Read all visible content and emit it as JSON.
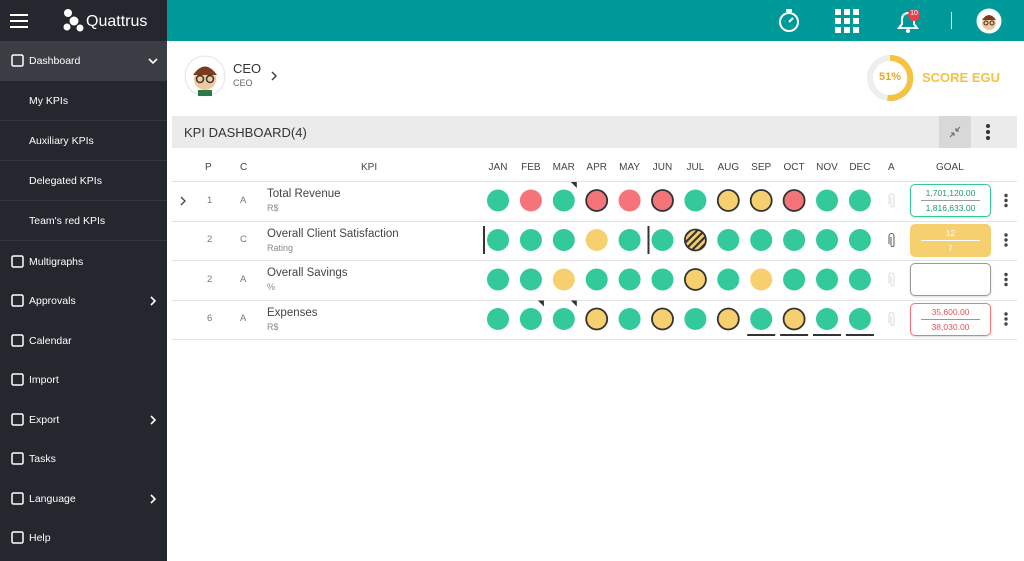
{
  "sidebar": {
    "brand": "Quattrus",
    "items": [
      {
        "label": "Dashboard",
        "expanded": true
      },
      {
        "label": "My KPIs"
      },
      {
        "label": "Auxiliary KPIs"
      },
      {
        "label": "Delegated KPIs"
      },
      {
        "label": "Team's red KPIs"
      },
      {
        "label": "Multigraphs"
      },
      {
        "label": "Approvals"
      },
      {
        "label": "Calendar"
      },
      {
        "label": "Import"
      },
      {
        "label": "Export"
      },
      {
        "label": "Tasks"
      },
      {
        "label": "Language"
      },
      {
        "label": "Help"
      }
    ]
  },
  "topbar": {
    "notifications": "10"
  },
  "profile": {
    "name": "CEO",
    "role": "CEO"
  },
  "score": {
    "value": "51%",
    "label": "SCORE EGU"
  },
  "dashboard": {
    "title": "KPI DASHBOARD(4)",
    "columns": {
      "p": "P",
      "c": "C",
      "kpi": "KPI",
      "months": [
        "JAN",
        "FEB",
        "MAR",
        "APR",
        "MAY",
        "JUN",
        "JUL",
        "AUG",
        "SEP",
        "OCT",
        "NOV",
        "DEC"
      ],
      "a": "A",
      "goal": "GOAL"
    },
    "rows": [
      {
        "p": "1",
        "c": "A",
        "name": "Total Revenue",
        "unit": "R$",
        "goal": [
          "1,701,120.00",
          "1,816,633.00"
        ],
        "goal_color": "#34c99a",
        "attach": false,
        "cells": [
          {
            "color": "#34c99a"
          },
          {
            "color": "#f47479"
          },
          {
            "color": "#34c99a",
            "corner": true
          },
          {
            "color": "#f47479",
            "outline": true
          },
          {
            "color": "#f47479"
          },
          {
            "color": "#f47479",
            "outline": true
          },
          {
            "color": "#34c99a"
          },
          {
            "color": "#f6d06f",
            "outline": true
          },
          {
            "color": "#f6d06f",
            "outline": true
          },
          {
            "color": "#f47479",
            "outline": true
          },
          {
            "color": "#34c99a"
          },
          {
            "color": "#34c99a"
          }
        ]
      },
      {
        "p": "2",
        "c": "C",
        "name": "Overall Client Satisfaction",
        "unit": "Rating",
        "goal": [
          "12",
          "7"
        ],
        "goal_color": "#f6d06f",
        "goal_filled": true,
        "attach": true,
        "cells": [
          {
            "color": "#34c99a",
            "bar": true
          },
          {
            "color": "#34c99a"
          },
          {
            "color": "#34c99a"
          },
          {
            "color": "#f6d06f"
          },
          {
            "color": "#34c99a"
          },
          {
            "color": "#34c99a",
            "bar": true
          },
          {
            "color": "#e0b93a",
            "outline": true,
            "striped": true
          },
          {
            "color": "#34c99a"
          },
          {
            "color": "#34c99a"
          },
          {
            "color": "#34c99a"
          },
          {
            "color": "#34c99a"
          },
          {
            "color": "#34c99a"
          }
        ]
      },
      {
        "p": "2",
        "c": "A",
        "name": "Overall Savings",
        "unit": "%",
        "goal": [],
        "goal_color": "#999999",
        "attach": false,
        "cells": [
          {
            "color": "#34c99a"
          },
          {
            "color": "#34c99a"
          },
          {
            "color": "#f6d06f"
          },
          {
            "color": "#34c99a"
          },
          {
            "color": "#34c99a"
          },
          {
            "color": "#34c99a"
          },
          {
            "color": "#f6d06f",
            "outline": true
          },
          {
            "color": "#34c99a"
          },
          {
            "color": "#f6d06f"
          },
          {
            "color": "#34c99a"
          },
          {
            "color": "#34c99a"
          },
          {
            "color": "#34c99a"
          }
        ]
      },
      {
        "p": "6",
        "c": "A",
        "name": "Expenses",
        "unit": "R$",
        "goal": [
          "35,600.00",
          "38,030.00"
        ],
        "goal_color": "#f47479",
        "attach": false,
        "cells": [
          {
            "color": "#34c99a"
          },
          {
            "color": "#34c99a",
            "corner": true
          },
          {
            "color": "#34c99a",
            "corner": true
          },
          {
            "color": "#f6d06f",
            "outline": true
          },
          {
            "color": "#34c99a"
          },
          {
            "color": "#f6d06f",
            "outline": true
          },
          {
            "color": "#34c99a"
          },
          {
            "color": "#f6d06f",
            "outline": true
          },
          {
            "color": "#34c99a",
            "underline": true
          },
          {
            "color": "#f6d06f",
            "outline": true,
            "underline": true
          },
          {
            "color": "#34c99a",
            "underline": true
          },
          {
            "color": "#34c99a",
            "underline": true
          }
        ]
      }
    ]
  }
}
